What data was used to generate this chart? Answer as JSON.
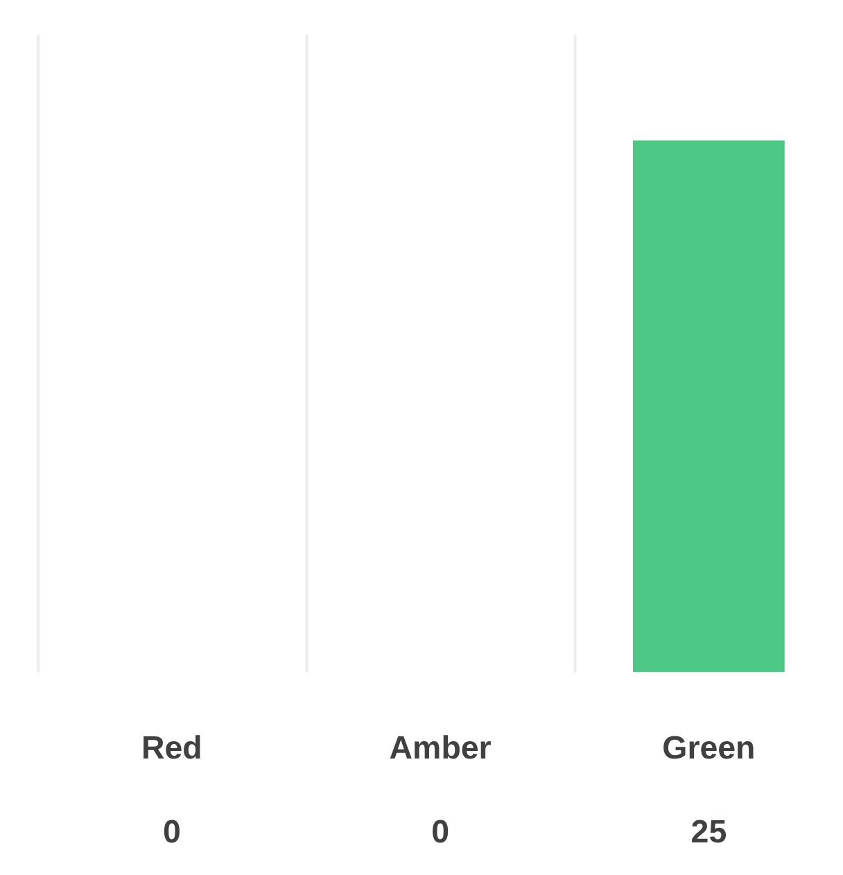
{
  "chart_data": {
    "type": "bar",
    "categories": [
      "Red",
      "Amber",
      "Green"
    ],
    "values": [
      0,
      0,
      25
    ],
    "colors": [
      "#e5534b",
      "#f5b942",
      "#4ec985"
    ],
    "ylim": [
      0,
      30
    ],
    "grid": "x",
    "data_labels": true,
    "tick_labels": "x"
  }
}
